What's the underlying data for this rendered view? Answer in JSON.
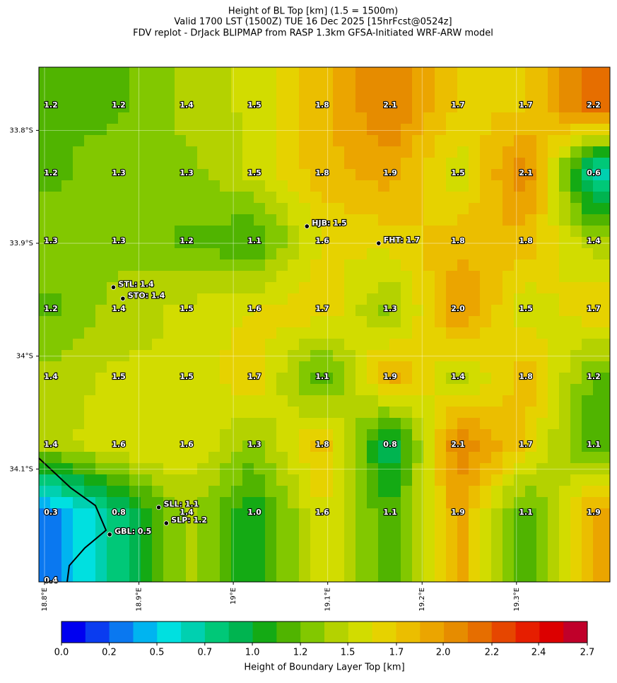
{
  "title": [
    "Height of BL Top [km] (1.5 = 1500m)",
    "Valid 1700 LST (1500Z) TUE 16 Dec 2025 [15hrFcst@0524z]",
    "FDV replot - DrJack BLIPMAP from RASP 1.3km GFSA-Initiated WRF-ARW model"
  ],
  "map": {
    "xlim": [
      18.794,
      19.399
    ],
    "ylim": [
      -34.2,
      -33.744
    ],
    "xticks": [
      {
        "value": 18.8,
        "label": "18.8°E"
      },
      {
        "value": 18.9,
        "label": "18.9°E"
      },
      {
        "value": 19.0,
        "label": "19°E"
      },
      {
        "value": 19.1,
        "label": "19.1°E"
      },
      {
        "value": 19.2,
        "label": "19.2°E"
      },
      {
        "value": 19.3,
        "label": "19.3°E"
      }
    ],
    "yticks": [
      {
        "value": -33.8,
        "label": "33.8°S"
      },
      {
        "value": -33.9,
        "label": "33.9°S"
      },
      {
        "value": -34.0,
        "label": "34°S"
      },
      {
        "value": -34.1,
        "label": "34.1°S"
      }
    ],
    "grid_labels": [
      [
        "1.2",
        "1.2",
        "1.4",
        "1.5",
        "1.8",
        "2.1",
        "1.7",
        "1.7",
        "2.2"
      ],
      [
        "1.2",
        "1.3",
        "1.3",
        "1.5",
        "1.8",
        "1.9",
        "1.5",
        "2.1",
        "0.6"
      ],
      [
        "1.3",
        "1.3",
        "1.2",
        "1.1",
        "1.6",
        null,
        "1.8",
        "1.8",
        "1.4"
      ],
      [
        "1.2",
        "1.4",
        "1.5",
        "1.6",
        "1.7",
        "1.3",
        "2.0",
        "1.5",
        "1.7"
      ],
      [
        "1.4",
        "1.5",
        "1.5",
        "1.7",
        "1.1",
        "1.9",
        "1.4",
        "1.8",
        "1.2"
      ],
      [
        "1.4",
        "1.6",
        "1.6",
        "1.3",
        "1.8",
        "0.8",
        "2.1",
        "1.7",
        "1.1"
      ],
      [
        "0.3",
        "0.8",
        "1.4",
        "1.0",
        "1.6",
        "1.1",
        "1.9",
        "1.1",
        "1.9"
      ],
      [
        "0.4"
      ]
    ],
    "stations": [
      {
        "label": "HJB: 1.5",
        "lon": 19.078,
        "lat": -33.885
      },
      {
        "label": "FHT: 1.7",
        "lon": 19.154,
        "lat": -33.9
      },
      {
        "label": "STL: 1.4",
        "lon": 18.873,
        "lat": -33.939
      },
      {
        "label": "STO: 1.4",
        "lon": 18.883,
        "lat": -33.949
      },
      {
        "label": "SLL: 1.1",
        "lon": 18.921,
        "lat": -34.134
      },
      {
        "label": "SLP: 1.2",
        "lon": 18.929,
        "lat": -34.148
      },
      {
        "label": "GBL: 0.5",
        "lon": 18.869,
        "lat": -34.158
      }
    ]
  },
  "colorbar": {
    "label": "Height of Boundary Layer Top [km]",
    "clim": [
      0,
      2.7
    ],
    "ticks": [
      {
        "value": 0,
        "label": "0.0"
      },
      {
        "value": 0.245,
        "label": "0.2"
      },
      {
        "value": 0.49,
        "label": "0.5"
      },
      {
        "value": 0.736,
        "label": "0.7"
      },
      {
        "value": 0.98,
        "label": "1.0"
      },
      {
        "value": 1.227,
        "label": "1.2"
      },
      {
        "value": 1.47,
        "label": "1.5"
      },
      {
        "value": 1.72,
        "label": "1.7"
      },
      {
        "value": 1.96,
        "label": "2.0"
      },
      {
        "value": 2.21,
        "label": "2.2"
      },
      {
        "value": 2.45,
        "label": "2.4"
      },
      {
        "value": 2.7,
        "label": "2.7"
      }
    ],
    "colors": [
      "#0000f0",
      "#0a3cf0",
      "#0a78f0",
      "#00b4f0",
      "#00e0e0",
      "#00d0b0",
      "#00c878",
      "#00b450",
      "#14aa14",
      "#50b400",
      "#82c800",
      "#b4d200",
      "#d2dc00",
      "#e6d200",
      "#ebbe00",
      "#eba500",
      "#e68c00",
      "#e66e00",
      "#e64600",
      "#e61e00",
      "#dc0000",
      "#c0002a"
    ]
  }
}
